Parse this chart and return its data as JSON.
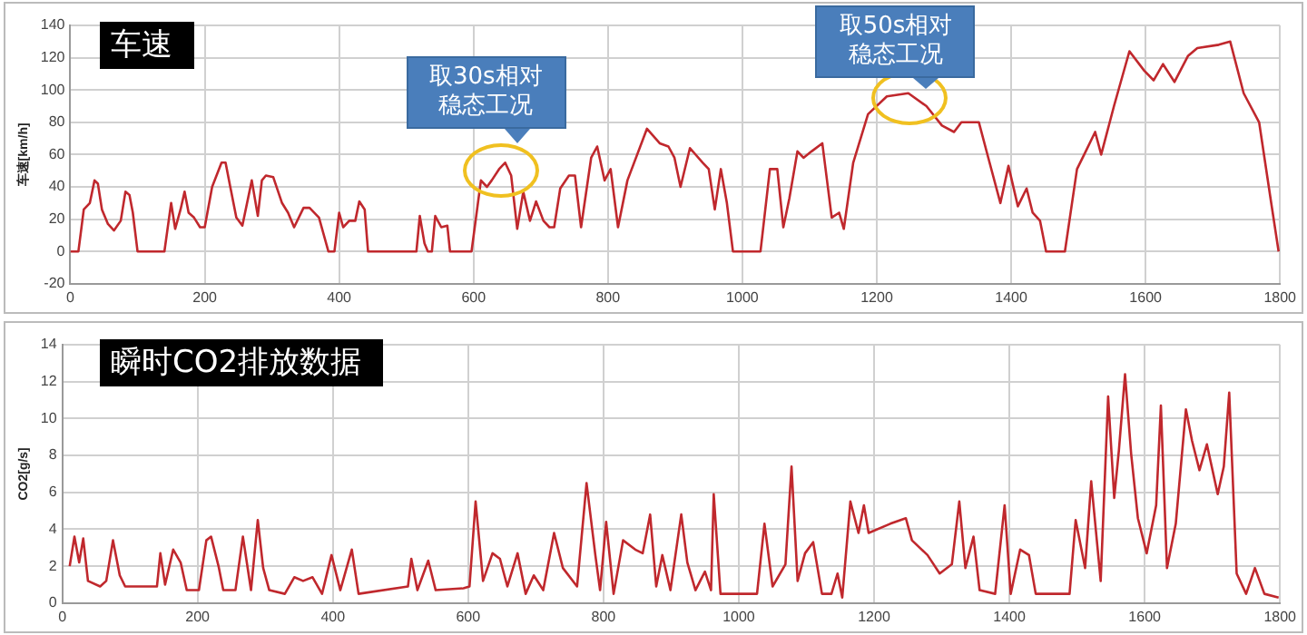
{
  "chart_data": [
    {
      "type": "line",
      "title": "车速",
      "ylabel": "车速[km/h]",
      "xlim": [
        0,
        1800
      ],
      "xticks": [
        0,
        200,
        400,
        600,
        800,
        1000,
        1200,
        1400,
        1600,
        1800
      ],
      "ylim": [
        -20,
        140
      ],
      "yticks": [
        -20,
        0,
        20,
        40,
        60,
        80,
        100,
        120,
        140
      ],
      "grid": true,
      "marker": "none",
      "x": [
        0,
        12,
        20,
        29,
        36,
        41,
        47,
        56,
        65,
        75,
        82,
        88,
        93,
        100,
        140,
        150,
        156,
        164,
        170,
        176,
        184,
        193,
        200,
        211,
        225,
        231,
        238,
        247,
        256,
        270,
        279,
        285,
        291,
        302,
        315,
        324,
        333,
        347,
        356,
        370,
        384,
        393,
        400,
        406,
        415,
        424,
        430,
        438,
        443,
        515,
        520,
        527,
        532,
        538,
        543,
        552,
        561,
        565,
        597,
        611,
        620,
        627,
        638,
        647,
        656,
        665,
        674,
        684,
        693,
        704,
        713,
        720,
        729,
        742,
        751,
        760,
        775,
        784,
        795,
        804,
        815,
        829,
        858,
        877,
        890,
        899,
        908,
        922,
        941,
        950,
        959,
        968,
        977,
        986,
        1027,
        1041,
        1052,
        1061,
        1070,
        1082,
        1091,
        1103,
        1119,
        1133,
        1144,
        1151,
        1165,
        1187,
        1215,
        1247,
        1274,
        1297,
        1315,
        1326,
        1352,
        1366,
        1384,
        1396,
        1410,
        1423,
        1432,
        1443,
        1452,
        1480,
        1498,
        1511,
        1525,
        1534,
        1553,
        1576,
        1598,
        1612,
        1626,
        1643,
        1663,
        1677,
        1709,
        1726,
        1746,
        1769,
        1787,
        1798
      ],
      "series": [
        {
          "color": "#c0282d",
          "values": [
            0,
            0,
            26,
            30,
            44,
            42,
            26,
            17,
            13,
            19,
            37,
            35,
            24,
            0,
            0,
            30,
            14,
            26,
            37,
            24,
            21,
            15,
            15,
            40,
            55,
            55,
            40,
            21,
            16,
            44,
            22,
            44,
            47,
            46,
            30,
            24,
            15,
            27,
            27,
            21,
            0,
            0,
            24,
            15,
            19,
            19,
            31,
            26,
            0,
            0,
            22,
            5,
            0,
            0,
            22,
            15,
            16,
            0,
            0,
            44,
            40,
            44,
            51,
            55,
            47,
            14,
            37,
            19,
            31,
            19,
            15,
            15,
            39,
            47,
            47,
            15,
            58,
            65,
            44,
            51,
            15,
            44,
            76,
            67,
            65,
            58,
            40,
            64,
            55,
            51,
            26,
            51,
            30,
            0,
            0,
            51,
            51,
            15,
            33,
            62,
            58,
            62,
            67,
            21,
            24,
            14,
            55,
            85,
            96,
            98,
            90,
            78,
            74,
            80,
            80,
            58,
            30,
            53,
            28,
            39,
            24,
            19,
            0,
            0,
            51,
            62,
            74,
            60,
            90,
            124,
            112,
            106,
            116,
            105,
            121,
            126,
            128,
            130,
            98,
            80,
            30,
            0
          ]
        }
      ],
      "annotations": [
        {
          "text": "取30s相对稳态工况",
          "x": 640,
          "y": 51
        },
        {
          "text": "取50s相对稳态工况",
          "x": 1250,
          "y": 96
        }
      ]
    },
    {
      "type": "line",
      "title": "瞬时CO2排放数据",
      "ylabel": "CO2[g/s]",
      "xlim": [
        0,
        1800
      ],
      "xticks": [
        0,
        200,
        400,
        600,
        800,
        1000,
        1200,
        1400,
        1600,
        1800
      ],
      "ylim": [
        0,
        14
      ],
      "yticks": [
        0,
        2,
        4,
        6,
        8,
        10,
        12,
        14
      ],
      "grid": true,
      "marker": "none",
      "x": [
        11,
        18,
        25,
        31,
        38,
        56,
        65,
        75,
        85,
        93,
        129,
        140,
        145,
        152,
        164,
        175,
        184,
        202,
        213,
        220,
        231,
        238,
        256,
        267,
        279,
        289,
        297,
        306,
        329,
        343,
        356,
        370,
        384,
        398,
        411,
        428,
        438,
        511,
        516,
        525,
        541,
        552,
        593,
        602,
        611,
        622,
        636,
        647,
        658,
        673,
        685,
        697,
        711,
        727,
        740,
        761,
        775,
        788,
        795,
        804,
        815,
        829,
        847,
        858,
        869,
        878,
        887,
        899,
        915,
        924,
        936,
        950,
        959,
        963,
        973,
        1014,
        1027,
        1038,
        1050,
        1069,
        1078,
        1087,
        1098,
        1110,
        1123,
        1137,
        1146,
        1153,
        1165,
        1177,
        1185,
        1192,
        1224,
        1247,
        1256,
        1279,
        1297,
        1315,
        1326,
        1335,
        1347,
        1356,
        1379,
        1393,
        1402,
        1416,
        1429,
        1439,
        1489,
        1498,
        1512,
        1521,
        1535,
        1546,
        1555,
        1562,
        1571,
        1580,
        1590,
        1603,
        1617,
        1624,
        1633,
        1646,
        1661,
        1670,
        1681,
        1692,
        1708,
        1717,
        1725,
        1736,
        1750,
        1763,
        1777,
        1798
      ],
      "series": [
        {
          "color": "#c0282d",
          "values": [
            2.0,
            3.6,
            2.2,
            3.5,
            1.2,
            0.9,
            1.2,
            3.4,
            1.5,
            0.9,
            0.9,
            0.9,
            2.7,
            1.0,
            2.9,
            2.2,
            0.7,
            0.7,
            3.4,
            3.6,
            2.0,
            0.7,
            0.7,
            3.6,
            0.7,
            4.5,
            1.9,
            0.7,
            0.5,
            1.4,
            1.2,
            1.4,
            0.5,
            2.6,
            0.7,
            2.9,
            0.5,
            0.9,
            2.4,
            0.7,
            2.3,
            0.7,
            0.8,
            0.9,
            5.5,
            1.2,
            2.7,
            2.4,
            0.9,
            2.7,
            0.5,
            1.5,
            0.7,
            3.8,
            1.9,
            0.9,
            6.5,
            2.6,
            0.7,
            4.4,
            0.5,
            3.4,
            2.9,
            2.7,
            4.8,
            0.9,
            2.6,
            0.7,
            4.8,
            2.2,
            0.7,
            1.7,
            0.7,
            5.9,
            0.5,
            0.5,
            0.5,
            4.3,
            0.9,
            2.1,
            7.4,
            1.2,
            2.7,
            3.3,
            0.5,
            0.5,
            1.6,
            0.3,
            5.5,
            3.8,
            5.3,
            3.8,
            4.3,
            4.6,
            3.4,
            2.6,
            1.6,
            2.1,
            5.5,
            1.9,
            3.6,
            0.7,
            0.5,
            5.3,
            0.5,
            2.9,
            2.6,
            0.5,
            0.5,
            4.5,
            1.9,
            6.6,
            1.2,
            11.2,
            5.7,
            8.3,
            12.4,
            8.1,
            4.6,
            2.7,
            5.3,
            10.7,
            1.9,
            4.3,
            10.5,
            8.8,
            7.2,
            8.6,
            5.9,
            7.4,
            11.4,
            1.6,
            0.5,
            1.9,
            0.5,
            0.3
          ]
        }
      ]
    }
  ]
}
